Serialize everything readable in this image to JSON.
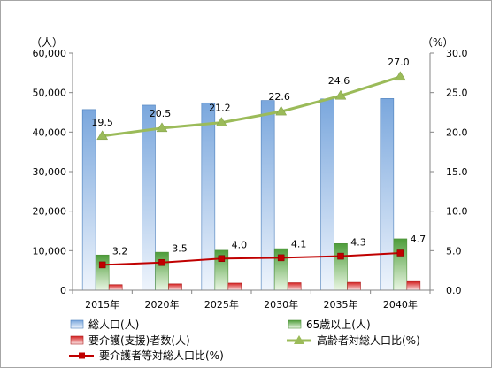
{
  "chart_data": {
    "type": "bar",
    "categories": [
      "2015年",
      "2020年",
      "2025年",
      "2030年",
      "2035年",
      "2040年"
    ],
    "left_axis": {
      "unit": "（人）",
      "ylim": [
        0,
        60000
      ],
      "ticks": [
        "0",
        "10,000",
        "20,000",
        "30,000",
        "40,000",
        "50,000",
        "60,000"
      ]
    },
    "right_axis": {
      "unit": "（%）",
      "ylim": [
        0,
        30
      ],
      "ticks": [
        "0.0",
        "5.0",
        "10.0",
        "15.0",
        "20.0",
        "25.0",
        "30.0"
      ]
    },
    "series": [
      {
        "name": "総人口(人)",
        "kind": "bar",
        "axis": "left",
        "color": "#8eb4e3",
        "values": [
          45700,
          46800,
          47400,
          48000,
          48400,
          48500
        ]
      },
      {
        "name": "65歳以上(人)",
        "kind": "bar",
        "axis": "left",
        "color": "#5fb04a",
        "values": [
          8900,
          9600,
          10100,
          10500,
          11800,
          13000
        ]
      },
      {
        "name": "要介護(支援)者数(人)",
        "kind": "bar",
        "axis": "left",
        "color": "#e03030",
        "values": [
          1400,
          1600,
          1800,
          1900,
          2000,
          2200
        ]
      },
      {
        "name": "高齢者対総人口比(%)",
        "kind": "line",
        "axis": "right",
        "color": "#9bbb59",
        "marker": "triangle",
        "values": [
          19.5,
          20.5,
          21.2,
          22.6,
          24.6,
          27.0
        ],
        "labels": [
          "19.5",
          "20.5",
          "21.2",
          "22.6",
          "24.6",
          "27.0"
        ]
      },
      {
        "name": "要介護者等対総人口比(%)",
        "kind": "line",
        "axis": "right",
        "color": "#c00000",
        "marker": "square",
        "values": [
          3.2,
          3.5,
          4.0,
          4.1,
          4.3,
          4.7
        ],
        "labels": [
          "3.2",
          "3.5",
          "4.0",
          "4.1",
          "4.3",
          "4.7"
        ]
      }
    ],
    "grid": false,
    "legend_position": "bottom"
  }
}
